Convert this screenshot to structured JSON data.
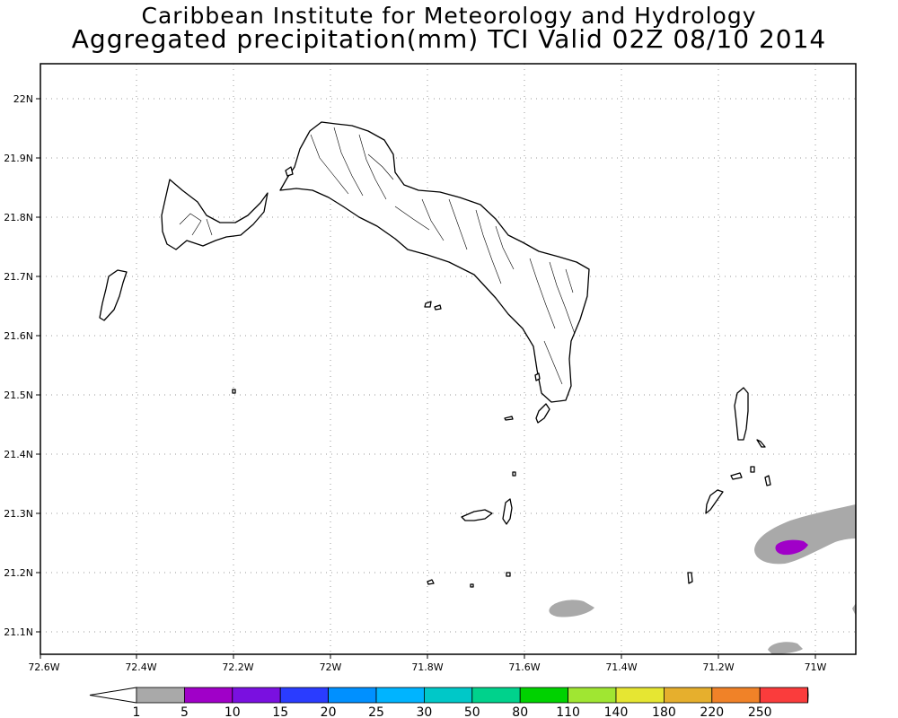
{
  "title_line1": "Caribbean Institute for Meteorology and Hydrology",
  "title_line2": "Aggregated precipitation(mm) TCI Valid 02Z 08/10 2014",
  "x_ticks": [
    "72.6W",
    "72.4W",
    "72.2W",
    "72W",
    "71.8W",
    "71.6W",
    "71.4W",
    "71.2W",
    "71W"
  ],
  "y_ticks": [
    "22N",
    "21.9N",
    "21.8N",
    "21.7N",
    "21.6N",
    "21.5N",
    "21.4N",
    "21.3N",
    "21.2N",
    "21.1N"
  ],
  "colorbar": {
    "labels": [
      "1",
      "5",
      "10",
      "15",
      "20",
      "25",
      "30",
      "50",
      "80",
      "110",
      "140",
      "180",
      "220",
      "250"
    ],
    "colors": [
      "#a9a9a9",
      "#a000c8",
      "#7a10e0",
      "#2a3cff",
      "#0090ff",
      "#00b4ff",
      "#00c8c8",
      "#00d28c",
      "#00d200",
      "#a0e632",
      "#e6e632",
      "#e6af2d",
      "#f08228",
      "#fa3c3c",
      "#f000a0"
    ],
    "below_color": "#ffffff"
  },
  "precip_cells": [
    {
      "category": "1-5",
      "color": "#a9a9a9"
    },
    {
      "category": "5-10",
      "color": "#a000c8"
    }
  ]
}
